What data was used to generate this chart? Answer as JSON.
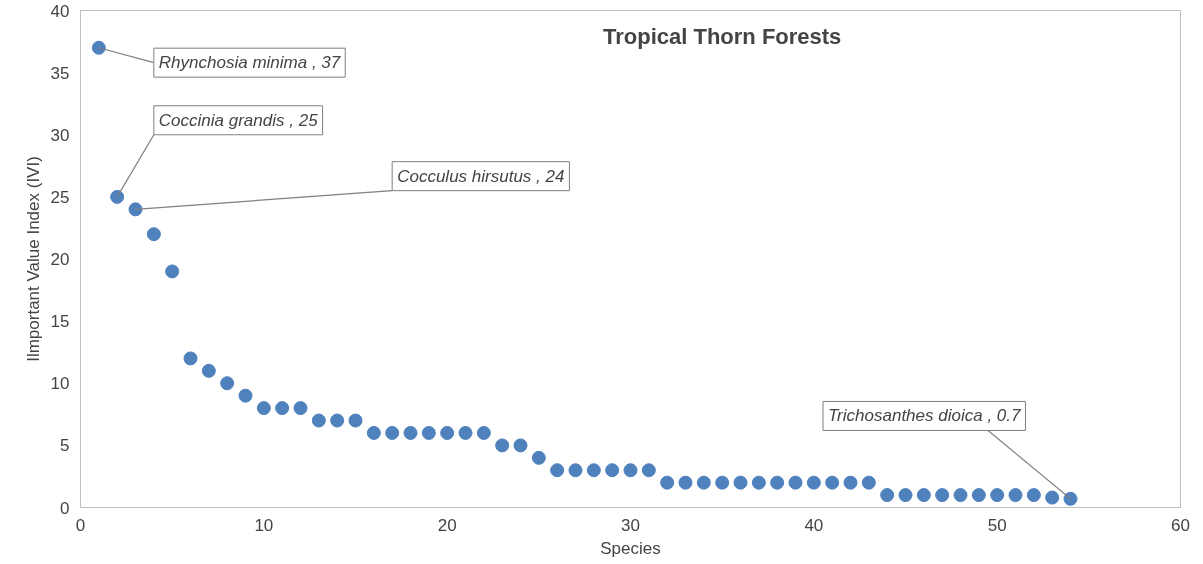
{
  "chart_data": {
    "type": "scatter",
    "title": "Tropical Thorn Forests",
    "xlabel": "Species",
    "ylabel": "Ilmportant Value Index (IVI)",
    "x": [
      1,
      2,
      3,
      4,
      5,
      6,
      7,
      8,
      9,
      10,
      11,
      12,
      13,
      14,
      15,
      16,
      17,
      18,
      19,
      20,
      21,
      22,
      23,
      24,
      25,
      26,
      27,
      28,
      29,
      30,
      31,
      32,
      33,
      34,
      35,
      36,
      37,
      38,
      39,
      40,
      41,
      42,
      43,
      44,
      45,
      46,
      47,
      48,
      49,
      50,
      51,
      52,
      53,
      54
    ],
    "series": [
      {
        "color": "#4f81bd",
        "values": [
          37,
          25,
          24,
          22,
          19,
          12,
          11,
          10,
          9,
          8,
          8,
          8,
          7,
          7,
          7,
          6,
          6,
          6,
          6,
          6,
          6,
          6,
          5,
          5,
          4,
          3,
          3,
          3,
          3,
          3,
          3,
          2,
          2,
          2,
          2,
          2,
          2,
          2,
          2,
          2,
          2,
          2,
          2,
          1,
          1,
          1,
          1,
          1,
          1,
          1,
          1,
          1,
          0.8,
          0.7
        ]
      }
    ],
    "xlim": [
      0,
      60
    ],
    "ylim": [
      0,
      40
    ],
    "xticks": [
      0,
      10,
      20,
      30,
      40,
      50,
      60
    ],
    "yticks": [
      0,
      5,
      10,
      15,
      20,
      25,
      30,
      35,
      40
    ],
    "marker": "circle",
    "grid": false,
    "annotations": [
      {
        "text": "Rhynchosia minima , 37",
        "x": 1,
        "y": 37
      },
      {
        "text": "Coccinia grandis , 25",
        "x": 2,
        "y": 25
      },
      {
        "text": "Cocculus hirsutus , 24",
        "x": 3,
        "y": 24
      },
      {
        "text": "Trichosanthes dioica , 0.7",
        "x": 54,
        "y": 0.7
      }
    ]
  }
}
